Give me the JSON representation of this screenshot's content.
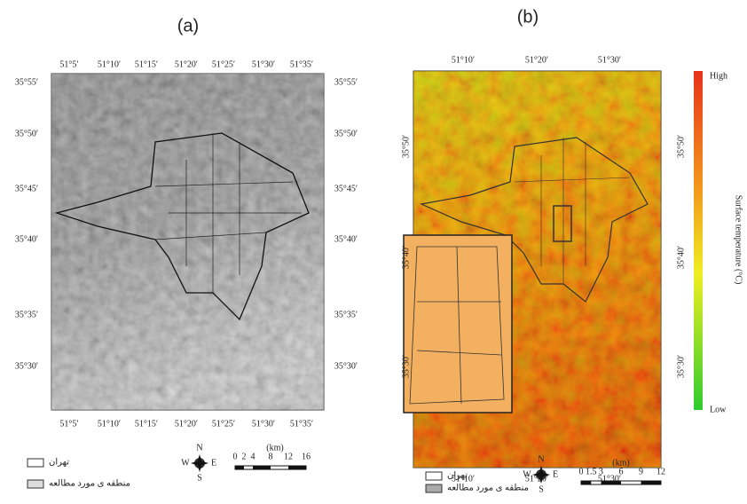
{
  "panels": [
    {
      "label": "(a)",
      "lon_labels": [
        "51°5′",
        "51°10′",
        "51°15′",
        "51°20′",
        "51°25′",
        "51°30′",
        "51°35′"
      ],
      "lat_labels": [
        "35°55′",
        "35°50′",
        "35°45′",
        "35°40′",
        "35°35′",
        "35°30′"
      ],
      "legend": [
        "تهران",
        "منطقه ی مورد مطالعه"
      ],
      "compass": [
        "N",
        "W",
        "E",
        "S"
      ],
      "scale_unit": "(km)",
      "scale_ticks": [
        0,
        2,
        4,
        8,
        12,
        16
      ]
    },
    {
      "label": "(b)",
      "lon_labels": [
        "51°10′",
        "51°20′",
        "51°30′"
      ],
      "lat_labels": [
        "35°50′",
        "35°40′",
        "35°30′"
      ],
      "legend": [
        "تهران",
        "منطقه ی مورد مطالعه"
      ],
      "compass": [
        "N",
        "W",
        "E",
        "S"
      ],
      "scale_unit": "(km)",
      "scale_ticks": [
        0,
        1.5,
        3,
        6,
        9,
        12
      ],
      "colorbar": {
        "high": "High",
        "low": "Low",
        "title": "Surface temperature (°C)"
      }
    }
  ]
}
